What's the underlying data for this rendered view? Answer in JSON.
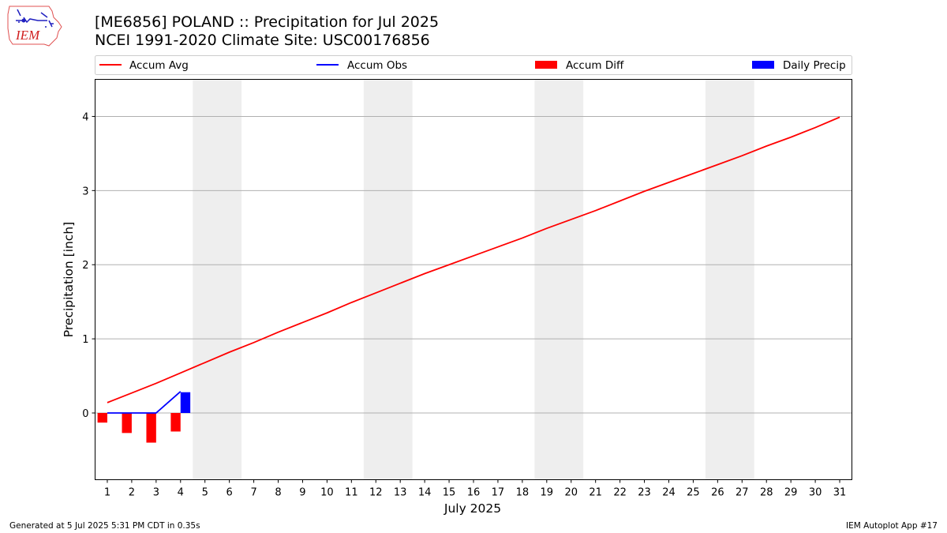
{
  "header": {
    "title_line1": "[ME6856] POLAND :: Precipitation for Jul 2025",
    "title_line2": "NCEI 1991-2020 Climate Site: USC00176856",
    "logo_text": "IEM"
  },
  "footer": {
    "generated": "Generated at 5 Jul 2025 5:31 PM CDT in 0.35s",
    "app": "IEM Autoplot App #17"
  },
  "colors": {
    "accum_avg": "#ff0000",
    "accum_obs": "#0000ff",
    "accum_diff": "#ff0000",
    "daily_precip": "#0000ff",
    "weekend_shade": "#eeeeee",
    "grid": "#b0b0b0"
  },
  "chart_data": {
    "type": "line",
    "xlabel": "July 2025",
    "ylabel": "Precipitation [inch]",
    "xlim": [
      0.5,
      31.5
    ],
    "ylim": [
      -0.9,
      4.5
    ],
    "x_ticks": [
      1,
      2,
      3,
      4,
      5,
      6,
      7,
      8,
      9,
      10,
      11,
      12,
      13,
      14,
      15,
      16,
      17,
      18,
      19,
      20,
      21,
      22,
      23,
      24,
      25,
      26,
      27,
      28,
      29,
      30,
      31
    ],
    "y_ticks": [
      0,
      1,
      2,
      3,
      4
    ],
    "grid": "y",
    "legend_placement": "top",
    "weekend_spans": [
      [
        4.5,
        6.5
      ],
      [
        11.5,
        13.5
      ],
      [
        18.5,
        20.5
      ],
      [
        25.5,
        27.5
      ]
    ],
    "series": [
      {
        "name": "Accum Avg",
        "kind": "line",
        "x": [
          1,
          2,
          3,
          4,
          5,
          6,
          7,
          8,
          9,
          10,
          11,
          12,
          13,
          14,
          15,
          16,
          17,
          18,
          19,
          20,
          21,
          22,
          23,
          24,
          25,
          26,
          27,
          28,
          29,
          30,
          31
        ],
        "values": [
          0.14,
          0.27,
          0.4,
          0.54,
          0.68,
          0.82,
          0.95,
          1.09,
          1.22,
          1.35,
          1.49,
          1.62,
          1.75,
          1.88,
          2.0,
          2.12,
          2.24,
          2.36,
          2.49,
          2.61,
          2.73,
          2.86,
          2.99,
          3.11,
          3.23,
          3.35,
          3.47,
          3.6,
          3.72,
          3.85,
          3.99
        ]
      },
      {
        "name": "Accum Obs",
        "kind": "line",
        "x": [
          1,
          2,
          3,
          4
        ],
        "values": [
          0.0,
          0.0,
          0.0,
          0.29
        ]
      },
      {
        "name": "Accum Diff",
        "kind": "bar",
        "x": [
          1,
          2,
          3,
          4
        ],
        "values": [
          -0.13,
          -0.27,
          -0.4,
          -0.25
        ]
      },
      {
        "name": "Daily Precip",
        "kind": "bar",
        "x": [
          4
        ],
        "values": [
          0.28
        ]
      }
    ]
  }
}
